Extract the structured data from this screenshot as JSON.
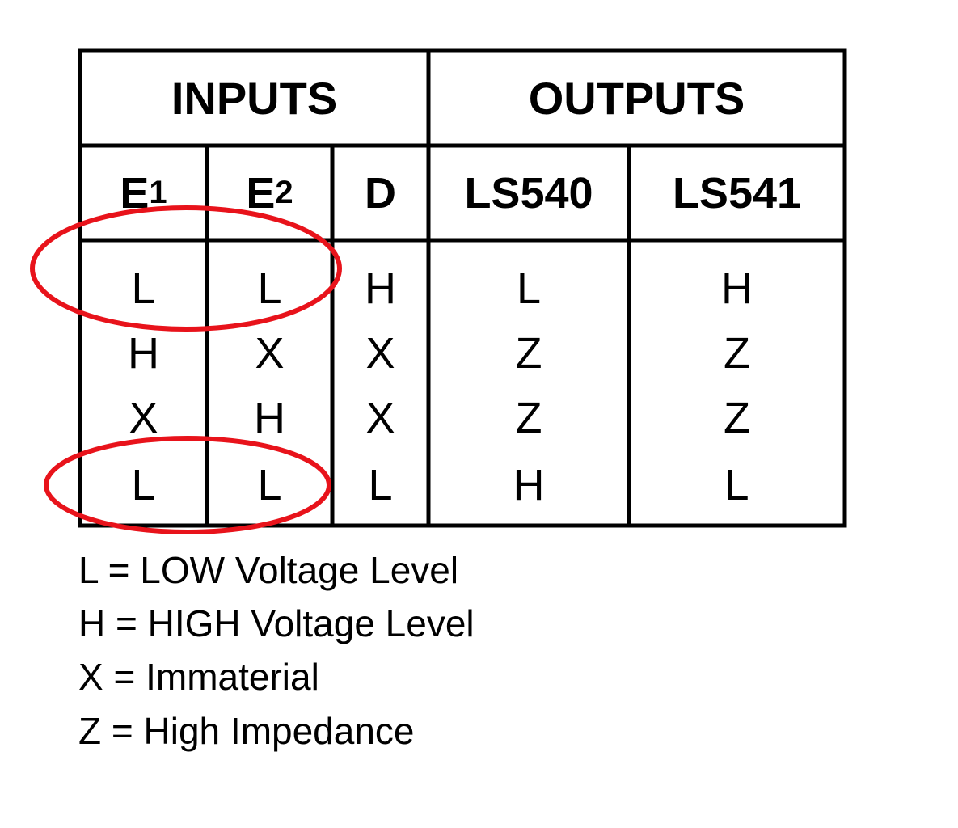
{
  "table": {
    "group_headers": [
      "INPUTS",
      "OUTPUTS"
    ],
    "columns": [
      {
        "base": "E",
        "sub": "1"
      },
      {
        "base": "E",
        "sub": "2"
      },
      {
        "base": "D",
        "sub": ""
      },
      {
        "base": "LS540",
        "sub": ""
      },
      {
        "base": "LS541",
        "sub": ""
      }
    ],
    "rows": [
      [
        "L",
        "L",
        "H",
        "L",
        "H"
      ],
      [
        "H",
        "X",
        "X",
        "Z",
        "Z"
      ],
      [
        "X",
        "H",
        "X",
        "Z",
        "Z"
      ],
      [
        "L",
        "L",
        "L",
        "H",
        "L"
      ]
    ]
  },
  "legend": [
    "L = LOW Voltage Level",
    "H = HIGH Voltage Level",
    "X = Immaterial",
    "Z = High Impedance"
  ],
  "annotation_color": "#e8131b"
}
